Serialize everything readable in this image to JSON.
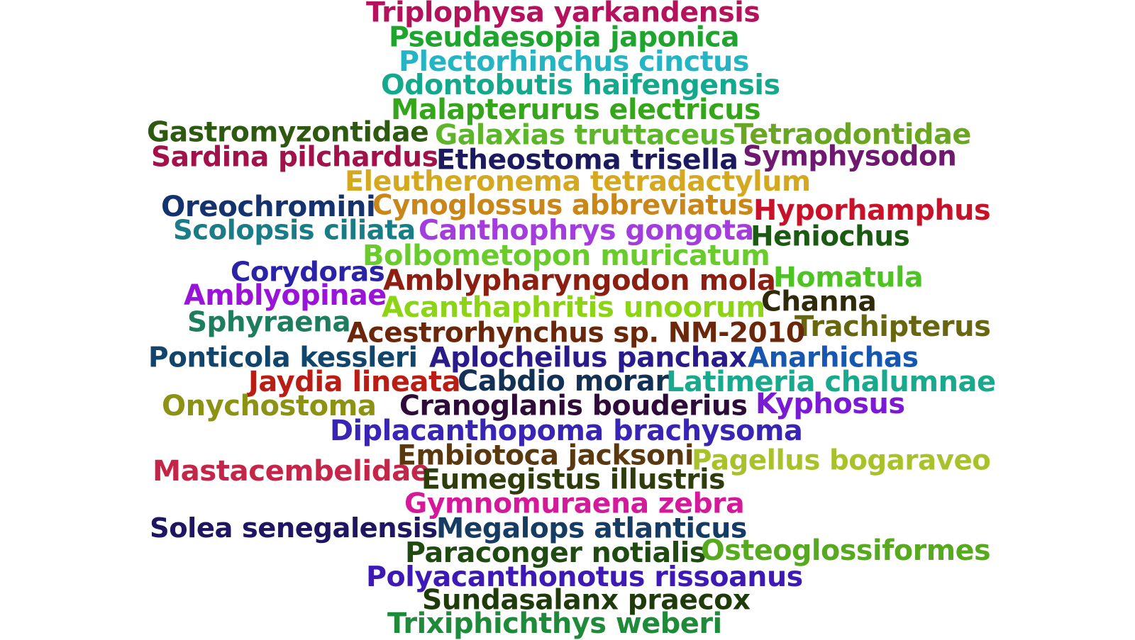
{
  "words": [
    {
      "text": "Triplophysa yarkandensis",
      "color": "#b5125e"
    },
    {
      "text": "Pseudaesopia japonica",
      "color": "#1fa52f"
    },
    {
      "text": "Plectorhinchus cinctus",
      "color": "#25b4c4"
    },
    {
      "text": "Odontobutis haifengensis",
      "color": "#14a88c"
    },
    {
      "text": "Malapterurus electricus",
      "color": "#35a61c"
    },
    {
      "text": "Gastromyzontidae",
      "color": "#2d5a10"
    },
    {
      "text": "Galaxias truttaceus",
      "color": "#5db52a"
    },
    {
      "text": "Tetraodontidae",
      "color": "#6aa624"
    },
    {
      "text": "Sardina pilchardus",
      "color": "#a3114a"
    },
    {
      "text": "Etheostoma trisella",
      "color": "#1c1a5e"
    },
    {
      "text": "Symphysodon",
      "color": "#6e1870"
    },
    {
      "text": "Eleutheronema tetradactylum",
      "color": "#d4a920"
    },
    {
      "text": "Oreochromini",
      "color": "#13326e"
    },
    {
      "text": "Cynoglossus abbreviatus",
      "color": "#c9871a"
    },
    {
      "text": "Hyporhamphus",
      "color": "#c8122a"
    },
    {
      "text": "Scolopsis ciliata",
      "color": "#1a7c86"
    },
    {
      "text": "Canthophrys gongota",
      "color": "#a33ddd"
    },
    {
      "text": "Heniochus",
      "color": "#1a5a12"
    },
    {
      "text": "Bolbometopon muricatum",
      "color": "#6acb2c"
    },
    {
      "text": "Corydoras",
      "color": "#2a23a8"
    },
    {
      "text": "Amblypharyngodon mola",
      "color": "#8c1f12"
    },
    {
      "text": "Homatula",
      "color": "#4ec424"
    },
    {
      "text": "Amblyopinae",
      "color": "#9a14d8"
    },
    {
      "text": "Acanthaphritis unoorum",
      "color": "#8cd415"
    },
    {
      "text": "Channa",
      "color": "#2e2a0a"
    },
    {
      "text": "Sphyraena",
      "color": "#1d7d5e"
    },
    {
      "text": "Trachipterus",
      "color": "#66670f"
    },
    {
      "text": "Acestrorhynchus sp. NM-2010",
      "color": "#6a2709"
    },
    {
      "text": "Ponticola kessleri",
      "color": "#11456c"
    },
    {
      "text": "Aplocheilus panchax",
      "color": "#2a1b8a"
    },
    {
      "text": "Anarhichas",
      "color": "#1757b0"
    },
    {
      "text": "Jaydia lineata",
      "color": "#ba1d13"
    },
    {
      "text": "Cabdio morar",
      "color": "#123154"
    },
    {
      "text": "Latimeria chalumnae",
      "color": "#19a98c"
    },
    {
      "text": "Onychostoma",
      "color": "#8c9214"
    },
    {
      "text": "Cranoglanis bouderius",
      "color": "#2f0b3a"
    },
    {
      "text": "Kyphosus",
      "color": "#7b1ad4"
    },
    {
      "text": "Diplacanthopoma brachysoma",
      "color": "#3824b5"
    },
    {
      "text": "Embiotoca jacksoni",
      "color": "#5a3810"
    },
    {
      "text": "Pagellus bogaraveo",
      "color": "#a9c12a"
    },
    {
      "text": "Mastacembelidae",
      "color": "#c4264a"
    },
    {
      "text": "Eumegistus illustris",
      "color": "#2f3d0d"
    },
    {
      "text": "Gymnomuraena zebra",
      "color": "#d4199a"
    },
    {
      "text": "Solea senegalensis",
      "color": "#1e1660"
    },
    {
      "text": "Megalops atlanticus",
      "color": "#163c64"
    },
    {
      "text": "Paraconger notialis",
      "color": "#1f4a12"
    },
    {
      "text": "Osteoglossiformes",
      "color": "#57aa1f"
    },
    {
      "text": "Polyacanthonotus rissoanus",
      "color": "#3d19b5"
    },
    {
      "text": "Sundasalanx praecox",
      "color": "#1f3a0b"
    },
    {
      "text": "Trixiphichthys weberi",
      "color": "#1e8a3a"
    }
  ]
}
